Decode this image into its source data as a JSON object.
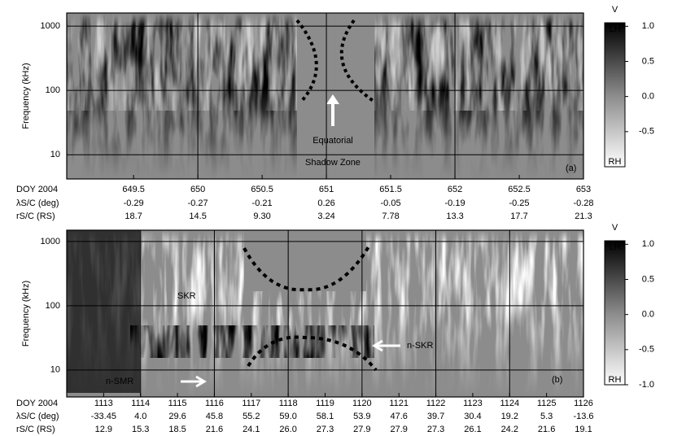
{
  "chart_data": [
    {
      "type": "spectrogram",
      "y_label": "Frequency (kHz)",
      "log_y": true,
      "ylim": [
        4.2,
        1600
      ],
      "yticks": [
        10,
        100,
        1000
      ],
      "xlim": [
        648.98,
        653
      ],
      "xticks": [
        649.5,
        650,
        650.5,
        651,
        651.5,
        652,
        652.5,
        653
      ],
      "xgrid": [
        650,
        651,
        652
      ],
      "row_labels": [
        "DOY 2004",
        "λS/C (deg)",
        "rS/C (RS)"
      ],
      "latitude": [
        "-0.29",
        "-0.27",
        "-0.21",
        "0.26",
        "-0.05",
        "-0.19",
        "-0.25",
        "-0.28"
      ],
      "distance": [
        "18.7",
        "14.5",
        "9.30",
        "3.24",
        "7.78",
        "13.3",
        "17.7",
        "21.3"
      ],
      "annotations": [
        "Equatorial",
        "Shadow Zone"
      ],
      "panel_label": "(a)",
      "colorbar": {
        "label": "V",
        "top_label": "LH",
        "bottom_label": "RH",
        "lim": [
          -1,
          1.05
        ],
        "ticks": [
          {
            "value": 1,
            "label": "1.0"
          },
          0.5,
          {
            "value": 0,
            "label": "0.0"
          },
          -0.5
        ]
      }
    },
    {
      "type": "spectrogram",
      "y_label": "Frequency (kHz)",
      "log_y": true,
      "ylim": [
        3.8,
        1500
      ],
      "yticks": [
        10,
        100,
        1000
      ],
      "xlim": [
        1112.0,
        1126
      ],
      "xticks": [
        1113,
        1114,
        1115,
        1116,
        1117,
        1118,
        1119,
        1120,
        1121,
        1122,
        1123,
        1124,
        1125,
        1126
      ],
      "xgrid": [
        1114,
        1116,
        1118,
        1120,
        1122,
        1124
      ],
      "row_labels": [
        "DOY 2004",
        "λS/C (deg)",
        "rS/C (RS)"
      ],
      "latitude": [
        "-33.45",
        "4.0",
        "29.6",
        "45.8",
        "55.2",
        "59.0",
        "58.1",
        "53.9",
        "47.6",
        "39.7",
        "30.4",
        "19.2",
        "5.3",
        "-13.6"
      ],
      "distance": [
        "12.9",
        "15.3",
        "18.5",
        "21.6",
        "24.1",
        "26.0",
        "27.3",
        "27.9",
        "27.9",
        "27.3",
        "26.1",
        "24.2",
        "21.6",
        "19.1"
      ],
      "annotations": [
        "SKR",
        "n-SKR",
        "n-SMR"
      ],
      "panel_label": "(b)",
      "colorbar": {
        "label": "V",
        "top_label": "LH",
        "bottom_label": "RH",
        "lim": [
          -1,
          1.05
        ],
        "ticks": [
          {
            "value": 1,
            "label": "1.0"
          },
          0.5,
          {
            "value": 0,
            "label": "0.0"
          },
          -0.5,
          {
            "value": -1,
            "label": "-1.0"
          }
        ]
      }
    }
  ]
}
